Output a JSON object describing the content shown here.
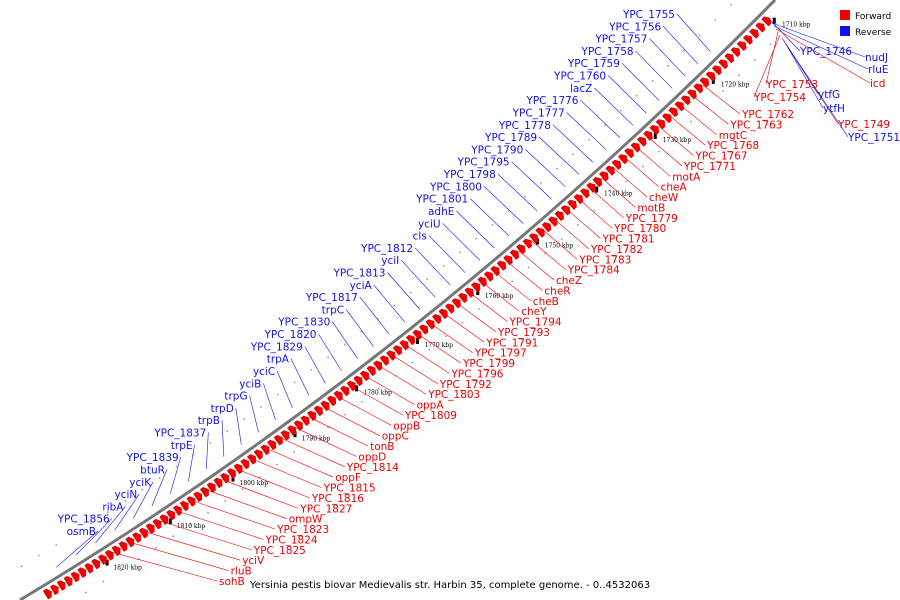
{
  "colors": {
    "forward": "#ee0000",
    "reverse": "#1111ee",
    "backbone": "#888888"
  },
  "legend": [
    {
      "label": "Forward",
      "color": "#ee0000"
    },
    {
      "label": "Reverse",
      "color": "#1111ee"
    }
  ],
  "caption": "Yersinia pestis biovar Medievalis str. Harbin 35, complete genome. - 0..4532063",
  "ticks": [
    "1710 kbp",
    "1720 kbp",
    "1730 kbp",
    "1740 kbp",
    "1750 kbp",
    "1760 kbp",
    "1770 kbp",
    "1780 kbp",
    "1790 kbp",
    "1800 kbp",
    "1810 kbp",
    "1820 kbp"
  ],
  "reverse_labels": [
    "YPC_1755",
    "YPC_1756",
    "YPC_1757",
    "YPC_1758",
    "YPC_1759",
    "YPC_1760",
    "lacZ",
    "YPC_1776",
    "YPC_1777",
    "YPC_1778",
    "YPC_1789",
    "YPC_1790",
    "YPC_1795",
    "YPC_1798",
    "YPC_1800",
    "YPC_1801",
    "adhE",
    "yciU",
    "cls",
    "YPC_1812",
    "yciI",
    "YPC_1813",
    "yciA",
    "YPC_1817",
    "trpC",
    "YPC_1830",
    "YPC_1820",
    "YPC_1829",
    "trpA",
    "yciC",
    "yciB",
    "trpG",
    "trpD",
    "trpB",
    "YPC_1837",
    "trpE",
    "YPC_1839",
    "btuR",
    "yciK",
    "yciN",
    "ribA",
    "YPC_1856",
    "osmB"
  ],
  "forward_labels": [
    "YPC_1762",
    "YPC_1763",
    "mgtC",
    "YPC_1768",
    "YPC_1767",
    "YPC_1771",
    "motA",
    "cheA",
    "cheW",
    "motB",
    "YPC_1779",
    "YPC_1780",
    "YPC_1781",
    "YPC_1782",
    "YPC_1783",
    "YPC_1784",
    "cheZ",
    "cheR",
    "cheB",
    "cheY",
    "YPC_1794",
    "YPC_1793",
    "YPC_1791",
    "YPC_1797",
    "YPC_1799",
    "YPC_1796",
    "YPC_1792",
    "YPC_1803",
    "oppA",
    "YPC_1809",
    "oppB",
    "oppC",
    "tonB",
    "oppD",
    "YPC_1814",
    "oppF",
    "YPC_1815",
    "YPC_1816",
    "YPC_1827",
    "ompW",
    "YPC_1823",
    "YPC_1824",
    "YPC_1825",
    "yciV",
    "rluB",
    "sohB"
  ],
  "right_labels": [
    "YPC_1746",
    "nudJ",
    "rluE",
    "icd",
    "YPC_1753",
    "YPC_1754",
    "ytfG",
    "ytfH",
    "YPC_1749",
    "YPC_1751"
  ]
}
